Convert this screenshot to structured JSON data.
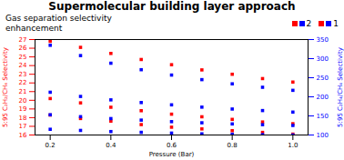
{
  "chart_data": {
    "type": "scatter",
    "title": "Supermolecular building layer approach",
    "subtitle": "Gas separation selectivity\nenhancement",
    "xlabel": "Pressure (Bar)",
    "ylabel": "5:95 C₂H₂/CH₄ Selectivity",
    "y2label": "5:95 C₂H₄/CH₄ Selectivity",
    "x": [
      0.2,
      0.3,
      0.4,
      0.5,
      0.6,
      0.7,
      0.8,
      0.9,
      1.0
    ],
    "series": [
      {
        "name": "2",
        "color": "red",
        "marker": "square",
        "axis": "y",
        "values": [
          26.8,
          26.1,
          25.4,
          24.7,
          24.1,
          23.5,
          23.0,
          22.5,
          22.1
        ]
      },
      {
        "name": "1",
        "color": "red",
        "marker": "square",
        "axis": "y",
        "values": [
          20.2,
          19.7,
          19.2,
          18.8,
          18.4,
          18.1,
          17.8,
          17.5,
          17.3
        ]
      },
      {
        "color": "red",
        "marker": "square",
        "axis": "y",
        "values": [
          18.3,
          17.9,
          17.6,
          17.2,
          16.9,
          16.7,
          16.5,
          16.3,
          16.1
        ]
      },
      {
        "name": "2",
        "color": "blue",
        "marker": "square",
        "axis": "y2",
        "values": [
          335,
          308,
          288,
          271,
          257,
          245,
          234,
          225,
          217
        ]
      },
      {
        "name": "1",
        "color": "blue",
        "marker": "square",
        "axis": "y2",
        "values": [
          212,
          201,
          192,
          185,
          179,
          173,
          168,
          164,
          160
        ]
      },
      {
        "color": "blue",
        "marker": "square",
        "axis": "y2",
        "values": [
          153,
          148,
          143,
          139,
          135,
          132,
          129,
          127,
          125
        ]
      },
      {
        "color": "blue",
        "marker": "square",
        "axis": "y2",
        "values": [
          115,
          112,
          109,
          107,
          105,
          103,
          102,
          101,
          100
        ]
      }
    ],
    "xlim": [
      0.15,
      1.05
    ],
    "xticks": [
      0.2,
      0.4,
      0.6,
      0.8,
      {
        "value": 1,
        "label": "1.0"
      }
    ],
    "ylim": [
      16,
      27
    ],
    "yticks": [
      16,
      17,
      18,
      19,
      20,
      21,
      22,
      23,
      24,
      25,
      26,
      27
    ],
    "y2lim": [
      100,
      350
    ],
    "y2ticks": [
      100,
      150,
      200,
      250,
      300,
      350
    ],
    "grid": false,
    "legend": "upper right"
  }
}
